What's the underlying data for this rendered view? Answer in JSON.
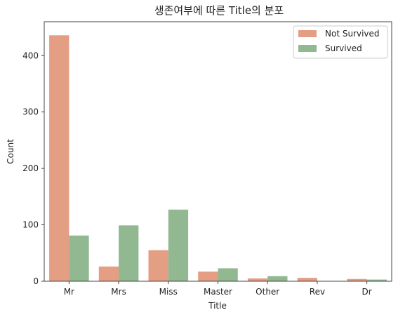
{
  "chart_data": {
    "type": "bar",
    "title": "생존여부에 따른 Title의 분포",
    "xlabel": "Title",
    "ylabel": "Count",
    "categories": [
      "Mr",
      "Mrs",
      "Miss",
      "Master",
      "Other",
      "Rev",
      "Dr"
    ],
    "series": [
      {
        "name": "Not Survived",
        "color": "#e49e84",
        "values": [
          436,
          26,
          55,
          17,
          5,
          6,
          4
        ]
      },
      {
        "name": "Survived",
        "color": "#91b891",
        "values": [
          81,
          99,
          127,
          23,
          9,
          0,
          3
        ]
      }
    ],
    "ylim": [
      0,
      460
    ],
    "yticks": [
      0,
      100,
      200,
      300,
      400
    ],
    "legend_position": "top-right",
    "grid": false
  }
}
